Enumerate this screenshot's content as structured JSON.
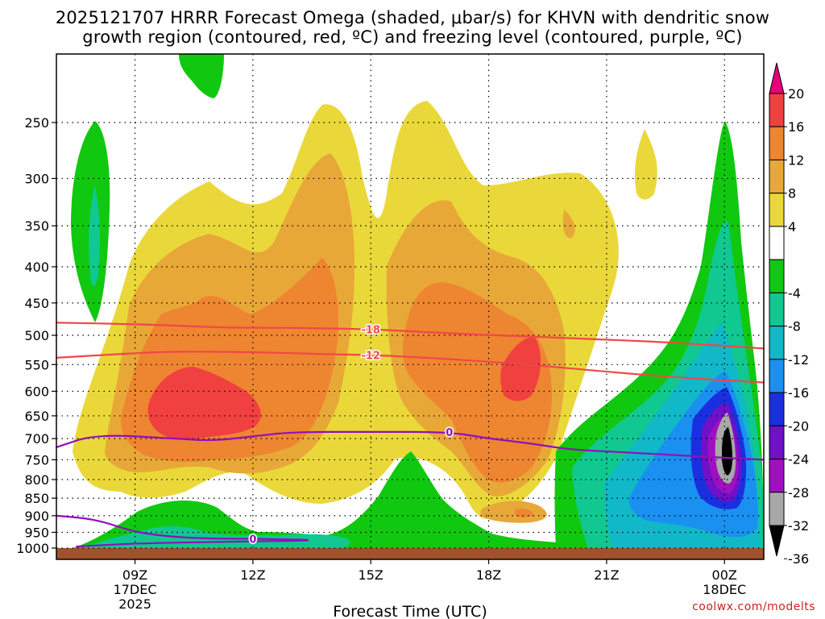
{
  "title": {
    "line1": "2025121707 HRRR Forecast Omega (shaded, μbar/s) for KHVN with dendritic snow",
    "line2": "growth region (contoured, red, ºC) and freezing level (contoured, purple, ºC)"
  },
  "chart_data": {
    "type": "heatmap",
    "xlabel": "Forecast Time (UTC)",
    "ylabel": "",
    "x_ticks": [
      {
        "t": 9,
        "label": "09Z",
        "sub1": "17DEC",
        "sub2": "2025"
      },
      {
        "t": 12,
        "label": "12Z",
        "sub1": "",
        "sub2": ""
      },
      {
        "t": 15,
        "label": "15Z",
        "sub1": "",
        "sub2": ""
      },
      {
        "t": 18,
        "label": "18Z",
        "sub1": "",
        "sub2": ""
      },
      {
        "t": 21,
        "label": "21Z",
        "sub1": "",
        "sub2": ""
      },
      {
        "t": 24,
        "label": "00Z",
        "sub1": "18DEC",
        "sub2": ""
      }
    ],
    "xlim": [
      7,
      25
    ],
    "y_ticks": [
      250,
      300,
      350,
      400,
      450,
      500,
      550,
      600,
      650,
      700,
      750,
      800,
      850,
      900,
      950,
      1000
    ],
    "ylim_hpa": [
      200,
      1000
    ],
    "y_scale": "log",
    "grid": true,
    "colorbar": {
      "unit": "μbar/s",
      "labels": [
        "20",
        "16",
        "12",
        "8",
        "4",
        "-4",
        "-8",
        "-12",
        "-16",
        "-20",
        "-24",
        "-28",
        "-32",
        "-36"
      ],
      "bands": [
        {
          "range": [
            20,
            99
          ],
          "color": "#e8007a"
        },
        {
          "range": [
            16,
            20
          ],
          "color": "#f04040"
        },
        {
          "range": [
            12,
            16
          ],
          "color": "#ee8530"
        },
        {
          "range": [
            8,
            12
          ],
          "color": "#e8a838"
        },
        {
          "range": [
            4,
            8
          ],
          "color": "#ead83a"
        },
        {
          "range": [
            -4,
            4
          ],
          "color": "#ffffff"
        },
        {
          "range": [
            -8,
            -4
          ],
          "color": "#10c810"
        },
        {
          "range": [
            -12,
            -8
          ],
          "color": "#10c890"
        },
        {
          "range": [
            -16,
            -12
          ],
          "color": "#10b8c8"
        },
        {
          "range": [
            -20,
            -16
          ],
          "color": "#1a90f0"
        },
        {
          "range": [
            -24,
            -20
          ],
          "color": "#1a30e0"
        },
        {
          "range": [
            -28,
            -24
          ],
          "color": "#7010c8"
        },
        {
          "range": [
            -32,
            -28
          ],
          "color": "#a010c0"
        },
        {
          "range": [
            -36,
            -32
          ],
          "color": "#a8a8a8"
        },
        {
          "range": [
            -99,
            -36
          ],
          "color": "#000000"
        }
      ]
    },
    "contours": [
      {
        "name": "-18",
        "label": "-18",
        "color": "#f04848",
        "points": [
          [
            7,
            480
          ],
          [
            9,
            482
          ],
          [
            11,
            487
          ],
          [
            12,
            488
          ],
          [
            13,
            488
          ],
          [
            15,
            490
          ],
          [
            17,
            497
          ],
          [
            19,
            502
          ],
          [
            21,
            507
          ],
          [
            23,
            513
          ],
          [
            25,
            522
          ]
        ]
      },
      {
        "name": "-12",
        "label": "-12",
        "color": "#f04848",
        "points": [
          [
            7,
            538
          ],
          [
            9,
            530
          ],
          [
            10,
            527
          ],
          [
            12,
            528
          ],
          [
            14,
            532
          ],
          [
            15,
            533
          ],
          [
            17,
            540
          ],
          [
            19,
            550
          ],
          [
            21,
            563
          ],
          [
            23,
            575
          ],
          [
            25,
            583
          ]
        ]
      },
      {
        "name": "0",
        "label": "0",
        "color": "#9010b8",
        "points": [
          [
            7,
            720
          ],
          [
            8,
            690
          ],
          [
            10,
            700
          ],
          [
            11,
            705
          ],
          [
            12,
            695
          ],
          [
            13,
            685
          ],
          [
            15,
            685
          ],
          [
            17,
            685
          ],
          [
            18,
            700
          ],
          [
            19,
            710
          ],
          [
            20,
            725
          ],
          [
            21,
            730
          ],
          [
            23,
            740
          ],
          [
            24,
            745
          ],
          [
            25,
            750
          ]
        ]
      },
      {
        "name": "0b",
        "label": "0",
        "color": "#9010b8",
        "points": [
          [
            7,
            900
          ],
          [
            8,
            910
          ],
          [
            9,
            950
          ],
          [
            10,
            965
          ],
          [
            11,
            970
          ],
          [
            12,
            970
          ],
          [
            14,
            975
          ],
          [
            11,
            980
          ],
          [
            9,
            985
          ],
          [
            7.5,
            995
          ]
        ]
      }
    ],
    "footer": "coolwx.com/modelts"
  }
}
